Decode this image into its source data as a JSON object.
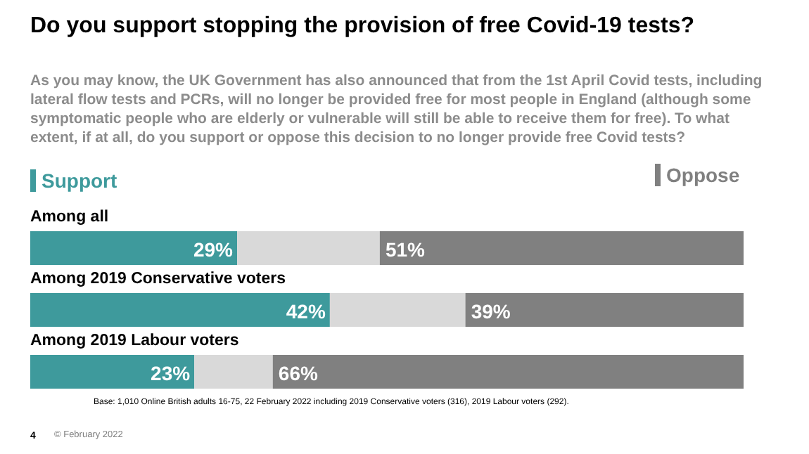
{
  "chart_data": {
    "type": "bar",
    "orientation": "horizontal",
    "stacked": true,
    "title": "Do you support stopping the provision of free Covid-19 tests?",
    "subtitle": "As you may know, the UK Government has also announced that from the 1st April Covid tests, including lateral flow tests and PCRs, will no longer be provided free for most people in England (although some symptomatic people who are elderly or vulnerable will still be able to receive them for free). To what extent, if at all, do you support or oppose this decision to no longer provide free Covid tests?",
    "categories": [
      "Among all",
      "Among 2019 Conservative voters",
      "Among 2019 Labour voters"
    ],
    "series": [
      {
        "name": "Support",
        "color": "#3e9a9c",
        "values": [
          29,
          42,
          23
        ],
        "value_labels": [
          "29%",
          "42%",
          "23%"
        ]
      },
      {
        "color": "#d9d9d9",
        "values": [
          20,
          19,
          11
        ]
      },
      {
        "name": "Oppose",
        "color": "#808080",
        "values": [
          51,
          39,
          66
        ],
        "value_labels": [
          "51%",
          "39%",
          "66%"
        ]
      }
    ],
    "legend": "top",
    "annotations": [
      "Base: 1,010 Online British adults 16-75, 22 February 2022 including 2019 Conservative voters (316), 2019 Labour voters (292).",
      "4",
      "© February 2022"
    ]
  }
}
